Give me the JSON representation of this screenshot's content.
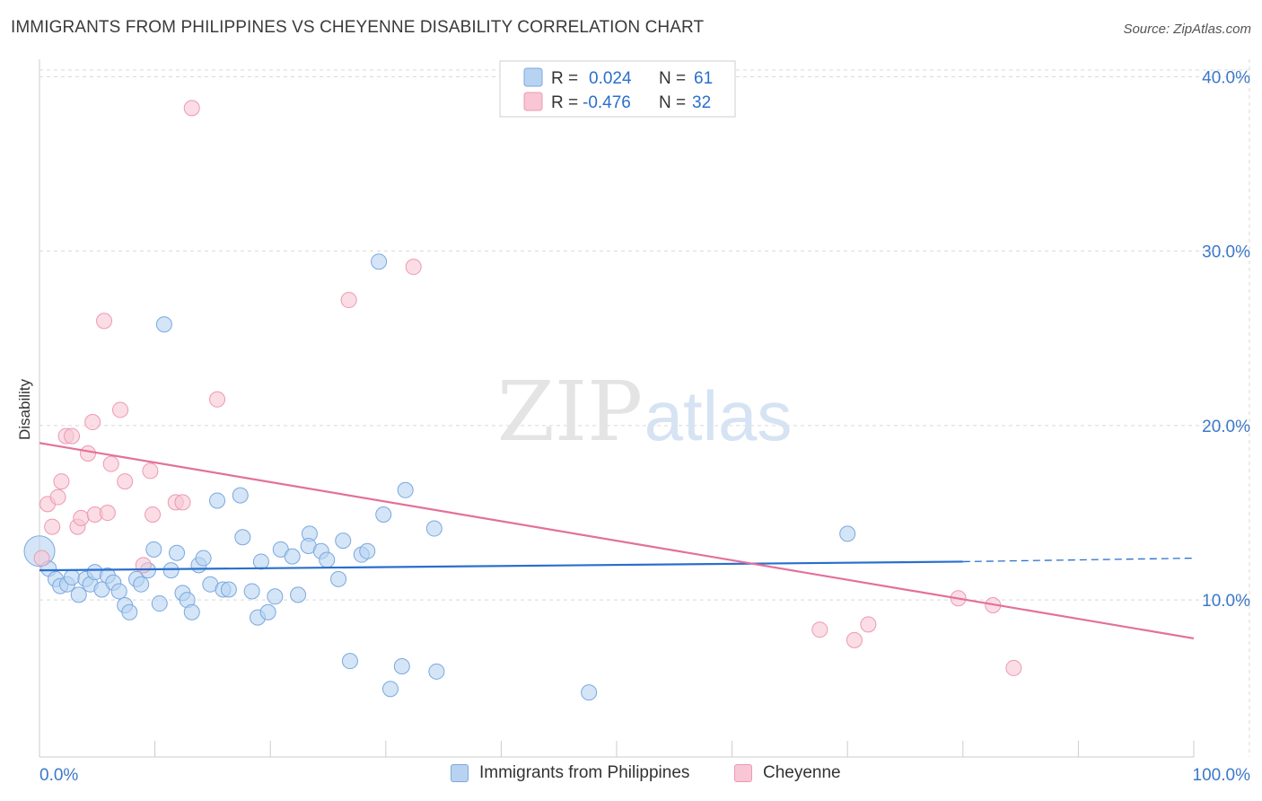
{
  "title": "IMMIGRANTS FROM PHILIPPINES VS CHEYENNE DISABILITY CORRELATION CHART",
  "source": "Source: ZipAtlas.com",
  "watermark": {
    "zip": "ZIP",
    "atlas": "atlas"
  },
  "colors": {
    "blue_fill": "#b8d3f2",
    "blue_stroke": "#7aa8de",
    "blue_line": "#2a6fcc",
    "pink_fill": "#f8c6d4",
    "pink_stroke": "#ec99b3",
    "pink_line": "#e3709a",
    "axis_label": "#3c78c8",
    "grid": "#d9d9d9"
  },
  "stats_legend": {
    "rows": [
      {
        "r_label": "R =",
        "r_value": "0.024",
        "n_label": "N =",
        "n_value": "61",
        "color": "blue"
      },
      {
        "r_label": "R =",
        "r_value": "-0.476",
        "n_label": "N =",
        "n_value": "32",
        "color": "pink"
      }
    ]
  },
  "chart_data": {
    "type": "scatter",
    "title": "IMMIGRANTS FROM PHILIPPINES VS CHEYENNE DISABILITY CORRELATION CHART",
    "xlabel": "",
    "ylabel": "Disability",
    "xlim": [
      0,
      100
    ],
    "ylim": [
      1.0,
      41.0
    ],
    "x_tick_labels": [
      "0.0%",
      "100.0%"
    ],
    "y_ticks": [
      10,
      20,
      30,
      40
    ],
    "y_tick_labels": [
      "10.0%",
      "20.0%",
      "30.0%",
      "40.0%"
    ],
    "grid": true,
    "legend_position": "bottom",
    "series": [
      {
        "name": "Immigrants from Philippines",
        "color": "blue",
        "trend": {
          "x": [
            0,
            80
          ],
          "y": [
            11.7,
            12.2
          ],
          "dashed_extension": {
            "x": [
              80,
              100
            ],
            "y": [
              12.2,
              12.4
            ]
          }
        },
        "points": [
          {
            "x": 0.0,
            "y": 12.8,
            "big": true
          },
          {
            "x": 0.8,
            "y": 11.8
          },
          {
            "x": 1.4,
            "y": 11.2
          },
          {
            "x": 1.8,
            "y": 10.8
          },
          {
            "x": 2.4,
            "y": 10.9
          },
          {
            "x": 2.8,
            "y": 11.3
          },
          {
            "x": 3.4,
            "y": 10.3
          },
          {
            "x": 4.0,
            "y": 11.2
          },
          {
            "x": 4.4,
            "y": 10.9
          },
          {
            "x": 4.8,
            "y": 11.6
          },
          {
            "x": 5.4,
            "y": 10.6
          },
          {
            "x": 5.9,
            "y": 11.4
          },
          {
            "x": 6.4,
            "y": 11.0
          },
          {
            "x": 6.9,
            "y": 10.5
          },
          {
            "x": 7.4,
            "y": 9.7
          },
          {
            "x": 7.8,
            "y": 9.3
          },
          {
            "x": 8.4,
            "y": 11.2
          },
          {
            "x": 8.8,
            "y": 10.9
          },
          {
            "x": 9.4,
            "y": 11.7
          },
          {
            "x": 9.9,
            "y": 12.9
          },
          {
            "x": 10.4,
            "y": 9.8
          },
          {
            "x": 10.8,
            "y": 25.8
          },
          {
            "x": 11.4,
            "y": 11.7
          },
          {
            "x": 11.9,
            "y": 12.7
          },
          {
            "x": 12.4,
            "y": 10.4
          },
          {
            "x": 12.8,
            "y": 10.0
          },
          {
            "x": 13.2,
            "y": 9.3
          },
          {
            "x": 13.8,
            "y": 12.0
          },
          {
            "x": 14.2,
            "y": 12.4
          },
          {
            "x": 14.8,
            "y": 10.9
          },
          {
            "x": 15.4,
            "y": 15.7
          },
          {
            "x": 15.9,
            "y": 10.6
          },
          {
            "x": 16.4,
            "y": 10.6
          },
          {
            "x": 17.4,
            "y": 16.0
          },
          {
            "x": 17.6,
            "y": 13.6
          },
          {
            "x": 18.4,
            "y": 10.5
          },
          {
            "x": 18.9,
            "y": 9.0
          },
          {
            "x": 19.2,
            "y": 12.2
          },
          {
            "x": 19.8,
            "y": 9.3
          },
          {
            "x": 20.4,
            "y": 10.2
          },
          {
            "x": 20.9,
            "y": 12.9
          },
          {
            "x": 21.9,
            "y": 12.5
          },
          {
            "x": 22.4,
            "y": 10.3
          },
          {
            "x": 23.4,
            "y": 13.8
          },
          {
            "x": 23.3,
            "y": 13.1
          },
          {
            "x": 24.4,
            "y": 12.8
          },
          {
            "x": 24.9,
            "y": 12.3
          },
          {
            "x": 25.9,
            "y": 11.2
          },
          {
            "x": 26.3,
            "y": 13.4
          },
          {
            "x": 26.9,
            "y": 6.5
          },
          {
            "x": 27.9,
            "y": 12.6
          },
          {
            "x": 28.4,
            "y": 12.8
          },
          {
            "x": 29.4,
            "y": 29.4
          },
          {
            "x": 29.8,
            "y": 14.9
          },
          {
            "x": 30.4,
            "y": 4.9
          },
          {
            "x": 31.4,
            "y": 6.2
          },
          {
            "x": 31.7,
            "y": 16.3
          },
          {
            "x": 34.2,
            "y": 14.1
          },
          {
            "x": 34.4,
            "y": 5.9
          },
          {
            "x": 47.6,
            "y": 4.7
          },
          {
            "x": 70.0,
            "y": 13.8
          }
        ]
      },
      {
        "name": "Cheyenne",
        "color": "pink",
        "trend": {
          "x": [
            0,
            100
          ],
          "y": [
            19.0,
            7.8
          ]
        },
        "points": [
          {
            "x": 0.2,
            "y": 12.4
          },
          {
            "x": 0.7,
            "y": 15.5
          },
          {
            "x": 1.1,
            "y": 14.2
          },
          {
            "x": 1.6,
            "y": 15.9
          },
          {
            "x": 1.9,
            "y": 16.8
          },
          {
            "x": 2.3,
            "y": 19.4
          },
          {
            "x": 2.8,
            "y": 19.4
          },
          {
            "x": 3.3,
            "y": 14.2
          },
          {
            "x": 3.6,
            "y": 14.7
          },
          {
            "x": 4.2,
            "y": 18.4
          },
          {
            "x": 4.6,
            "y": 20.2
          },
          {
            "x": 4.8,
            "y": 14.9
          },
          {
            "x": 5.6,
            "y": 26.0
          },
          {
            "x": 5.9,
            "y": 15.0
          },
          {
            "x": 6.2,
            "y": 17.8
          },
          {
            "x": 7.0,
            "y": 20.9
          },
          {
            "x": 7.4,
            "y": 16.8
          },
          {
            "x": 9.0,
            "y": 12.0
          },
          {
            "x": 9.6,
            "y": 17.4
          },
          {
            "x": 9.8,
            "y": 14.9
          },
          {
            "x": 11.8,
            "y": 15.6
          },
          {
            "x": 12.4,
            "y": 15.6
          },
          {
            "x": 13.2,
            "y": 38.2
          },
          {
            "x": 15.4,
            "y": 21.5
          },
          {
            "x": 26.8,
            "y": 27.2
          },
          {
            "x": 32.4,
            "y": 29.1
          },
          {
            "x": 67.6,
            "y": 8.3
          },
          {
            "x": 70.6,
            "y": 7.7
          },
          {
            "x": 71.8,
            "y": 8.6
          },
          {
            "x": 79.6,
            "y": 10.1
          },
          {
            "x": 82.6,
            "y": 9.7
          },
          {
            "x": 84.4,
            "y": 6.1
          }
        ]
      }
    ]
  }
}
